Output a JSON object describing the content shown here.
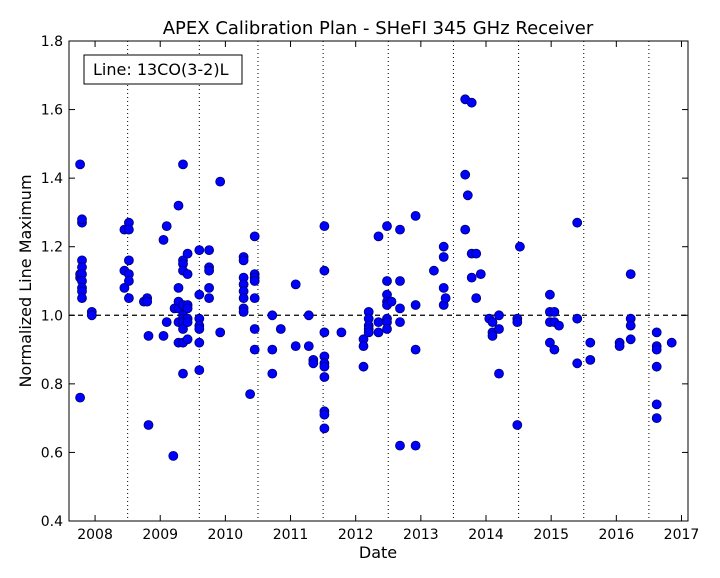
{
  "chart_data": {
    "type": "scatter",
    "title": "APEX Calibration Plan - SHeFI 345 GHz Receiver",
    "xlabel": "Date",
    "ylabel": "Normalized Line Maximum",
    "legend_text": "Line: 13CO(3-2)L",
    "legend_position": "top-left",
    "xlim": [
      2007.6,
      2017.1
    ],
    "ylim": [
      0.4,
      1.8
    ],
    "x_ticks": [
      2008,
      2009,
      2010,
      2011,
      2012,
      2013,
      2014,
      2015,
      2016,
      2017
    ],
    "x_tick_labels": [
      "2008",
      "2009",
      "2010",
      "2011",
      "2012",
      "2013",
      "2014",
      "2015",
      "2016",
      "2017"
    ],
    "y_ticks": [
      0.4,
      0.6,
      0.8,
      1.0,
      1.2,
      1.4,
      1.6,
      1.8
    ],
    "y_tick_labels": [
      "0.4",
      "0.6",
      "0.8",
      "1.0",
      "1.2",
      "1.4",
      "1.6",
      "1.8"
    ],
    "reference_line": 1.0,
    "vertical_dotted_lines": [
      2008.5,
      2009.6,
      2010.5,
      2011.5,
      2012.5,
      2013.5,
      2014.5,
      2015.5,
      2016.5
    ],
    "marker_color": "#0000ff",
    "points": [
      [
        2007.77,
        1.44
      ],
      [
        2007.77,
        0.76
      ],
      [
        2007.77,
        1.11
      ],
      [
        2007.77,
        1.12
      ],
      [
        2007.8,
        1.27
      ],
      [
        2007.8,
        1.28
      ],
      [
        2007.8,
        1.16
      ],
      [
        2007.8,
        1.14
      ],
      [
        2007.8,
        1.12
      ],
      [
        2007.8,
        1.1
      ],
      [
        2007.8,
        1.08
      ],
      [
        2007.8,
        1.07
      ],
      [
        2007.8,
        1.05
      ],
      [
        2007.95,
        1.01
      ],
      [
        2007.95,
        1.0
      ],
      [
        2008.45,
        1.25
      ],
      [
        2008.45,
        1.13
      ],
      [
        2008.45,
        1.08
      ],
      [
        2008.52,
        1.27
      ],
      [
        2008.52,
        1.25
      ],
      [
        2008.52,
        1.16
      ],
      [
        2008.52,
        1.12
      ],
      [
        2008.52,
        1.1
      ],
      [
        2008.52,
        1.05
      ],
      [
        2008.75,
        1.04
      ],
      [
        2008.8,
        1.05
      ],
      [
        2008.8,
        1.04
      ],
      [
        2008.82,
        0.94
      ],
      [
        2008.82,
        0.68
      ],
      [
        2009.05,
        1.22
      ],
      [
        2009.05,
        0.94
      ],
      [
        2009.1,
        1.26
      ],
      [
        2009.1,
        0.98
      ],
      [
        2009.2,
        0.59
      ],
      [
        2009.22,
        1.02
      ],
      [
        2009.28,
        1.32
      ],
      [
        2009.28,
        1.08
      ],
      [
        2009.28,
        1.04
      ],
      [
        2009.28,
        1.02
      ],
      [
        2009.28,
        0.98
      ],
      [
        2009.28,
        0.92
      ],
      [
        2009.35,
        1.44
      ],
      [
        2009.35,
        1.16
      ],
      [
        2009.35,
        1.15
      ],
      [
        2009.35,
        1.13
      ],
      [
        2009.35,
        1.03
      ],
      [
        2009.35,
        1.0
      ],
      [
        2009.35,
        0.99
      ],
      [
        2009.35,
        0.98
      ],
      [
        2009.35,
        0.96
      ],
      [
        2009.35,
        0.92
      ],
      [
        2009.35,
        0.83
      ],
      [
        2009.42,
        1.18
      ],
      [
        2009.42,
        1.12
      ],
      [
        2009.42,
        1.03
      ],
      [
        2009.42,
        1.02
      ],
      [
        2009.42,
        0.99
      ],
      [
        2009.42,
        0.98
      ],
      [
        2009.42,
        0.93
      ],
      [
        2009.6,
        1.19
      ],
      [
        2009.6,
        1.06
      ],
      [
        2009.6,
        0.99
      ],
      [
        2009.6,
        0.97
      ],
      [
        2009.6,
        0.96
      ],
      [
        2009.6,
        0.92
      ],
      [
        2009.6,
        0.84
      ],
      [
        2009.75,
        1.19
      ],
      [
        2009.75,
        1.14
      ],
      [
        2009.75,
        1.13
      ],
      [
        2009.75,
        1.08
      ],
      [
        2009.75,
        1.05
      ],
      [
        2009.92,
        1.39
      ],
      [
        2009.92,
        0.95
      ],
      [
        2010.28,
        1.17
      ],
      [
        2010.28,
        1.16
      ],
      [
        2010.28,
        1.11
      ],
      [
        2010.28,
        1.09
      ],
      [
        2010.28,
        1.07
      ],
      [
        2010.28,
        1.05
      ],
      [
        2010.28,
        1.02
      ],
      [
        2010.28,
        1.01
      ],
      [
        2010.38,
        0.77
      ],
      [
        2010.45,
        1.23
      ],
      [
        2010.45,
        1.12
      ],
      [
        2010.45,
        1.11
      ],
      [
        2010.45,
        1.1
      ],
      [
        2010.45,
        1.05
      ],
      [
        2010.45,
        0.96
      ],
      [
        2010.45,
        0.9
      ],
      [
        2010.72,
        1.0
      ],
      [
        2010.72,
        0.9
      ],
      [
        2010.72,
        0.83
      ],
      [
        2010.85,
        0.96
      ],
      [
        2011.08,
        1.09
      ],
      [
        2011.08,
        0.91
      ],
      [
        2011.28,
        1.0
      ],
      [
        2011.28,
        0.91
      ],
      [
        2011.35,
        0.87
      ],
      [
        2011.35,
        0.86
      ],
      [
        2011.52,
        1.26
      ],
      [
        2011.52,
        1.13
      ],
      [
        2011.52,
        0.95
      ],
      [
        2011.52,
        0.88
      ],
      [
        2011.52,
        0.86
      ],
      [
        2011.52,
        0.85
      ],
      [
        2011.52,
        0.82
      ],
      [
        2011.52,
        0.72
      ],
      [
        2011.52,
        0.71
      ],
      [
        2011.52,
        0.67
      ],
      [
        2011.78,
        0.95
      ],
      [
        2012.12,
        0.93
      ],
      [
        2012.12,
        0.91
      ],
      [
        2012.12,
        0.85
      ],
      [
        2012.2,
        1.01
      ],
      [
        2012.2,
        0.99
      ],
      [
        2012.2,
        0.97
      ],
      [
        2012.2,
        0.96
      ],
      [
        2012.2,
        0.95
      ],
      [
        2012.35,
        1.23
      ],
      [
        2012.35,
        0.98
      ],
      [
        2012.35,
        0.95
      ],
      [
        2012.48,
        1.26
      ],
      [
        2012.48,
        1.1
      ],
      [
        2012.48,
        1.06
      ],
      [
        2012.48,
        1.04
      ],
      [
        2012.48,
        1.03
      ],
      [
        2012.48,
        0.99
      ],
      [
        2012.48,
        0.98
      ],
      [
        2012.48,
        0.96
      ],
      [
        2012.55,
        1.04
      ],
      [
        2012.68,
        1.25
      ],
      [
        2012.68,
        1.1
      ],
      [
        2012.68,
        1.02
      ],
      [
        2012.68,
        0.98
      ],
      [
        2012.68,
        0.62
      ],
      [
        2012.92,
        1.29
      ],
      [
        2012.92,
        1.03
      ],
      [
        2012.92,
        0.9
      ],
      [
        2012.92,
        0.62
      ],
      [
        2013.2,
        1.13
      ],
      [
        2013.35,
        1.2
      ],
      [
        2013.35,
        1.17
      ],
      [
        2013.35,
        1.08
      ],
      [
        2013.35,
        1.03
      ],
      [
        2013.38,
        1.05
      ],
      [
        2013.68,
        1.63
      ],
      [
        2013.68,
        1.41
      ],
      [
        2013.68,
        1.25
      ],
      [
        2013.72,
        1.35
      ],
      [
        2013.78,
        1.62
      ],
      [
        2013.78,
        1.18
      ],
      [
        2013.78,
        1.11
      ],
      [
        2013.85,
        1.18
      ],
      [
        2013.85,
        1.05
      ],
      [
        2013.92,
        1.12
      ],
      [
        2014.05,
        0.99
      ],
      [
        2014.1,
        0.98
      ],
      [
        2014.1,
        0.95
      ],
      [
        2014.1,
        0.94
      ],
      [
        2014.2,
        1.0
      ],
      [
        2014.2,
        0.96
      ],
      [
        2014.2,
        0.83
      ],
      [
        2014.48,
        0.99
      ],
      [
        2014.48,
        0.98
      ],
      [
        2014.48,
        0.68
      ],
      [
        2014.52,
        1.2
      ],
      [
        2014.98,
        1.06
      ],
      [
        2014.98,
        1.01
      ],
      [
        2014.98,
        0.98
      ],
      [
        2014.98,
        0.92
      ],
      [
        2015.05,
        1.01
      ],
      [
        2015.05,
        0.98
      ],
      [
        2015.05,
        0.9
      ],
      [
        2015.12,
        0.97
      ],
      [
        2015.4,
        1.27
      ],
      [
        2015.4,
        0.99
      ],
      [
        2015.4,
        0.86
      ],
      [
        2015.6,
        0.92
      ],
      [
        2015.6,
        0.87
      ],
      [
        2016.05,
        0.92
      ],
      [
        2016.05,
        0.91
      ],
      [
        2016.22,
        1.12
      ],
      [
        2016.22,
        0.99
      ],
      [
        2016.22,
        0.97
      ],
      [
        2016.22,
        0.93
      ],
      [
        2016.62,
        0.95
      ],
      [
        2016.62,
        0.91
      ],
      [
        2016.62,
        0.9
      ],
      [
        2016.62,
        0.85
      ],
      [
        2016.62,
        0.74
      ],
      [
        2016.62,
        0.7
      ],
      [
        2016.85,
        0.92
      ]
    ]
  }
}
